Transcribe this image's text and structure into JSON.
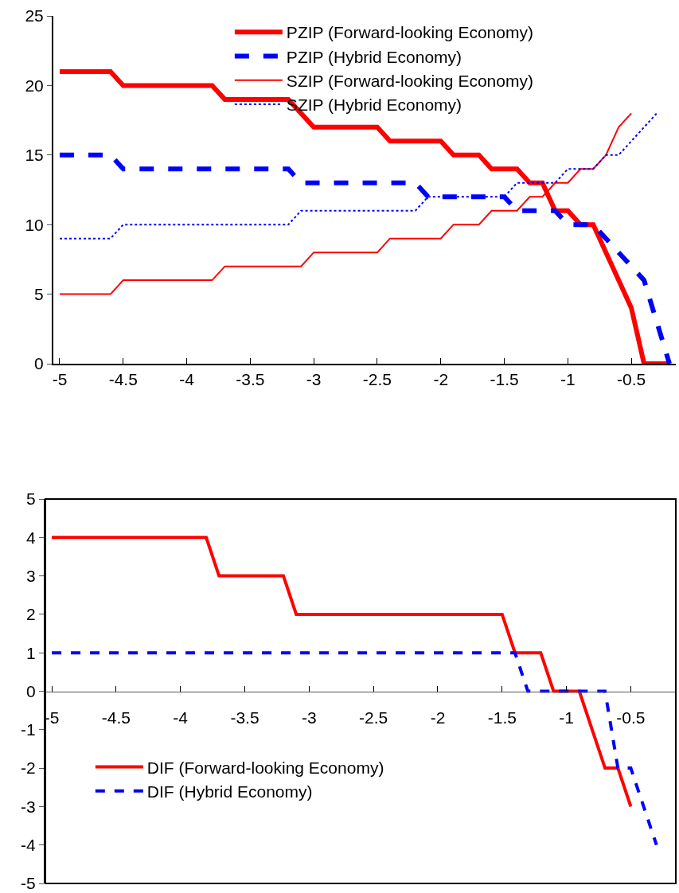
{
  "chart_data": [
    {
      "type": "line",
      "x": [
        -5,
        -4.9,
        -4.8,
        -4.7,
        -4.6,
        -4.5,
        -4.4,
        -4.3,
        -4.2,
        -4.1,
        -4,
        -3.9,
        -3.8,
        -3.7,
        -3.6,
        -3.5,
        -3.4,
        -3.3,
        -3.2,
        -3.1,
        -3,
        -2.9,
        -2.8,
        -2.7,
        -2.6,
        -2.5,
        -2.4,
        -2.3,
        -2.2,
        -2.1,
        -2,
        -1.9,
        -1.8,
        -1.7,
        -1.6,
        -1.5,
        -1.4,
        -1.3,
        -1.2,
        -1.1,
        -1,
        -0.9,
        -0.8,
        -0.7,
        -0.6,
        -0.5,
        -0.4,
        -0.3,
        -0.2
      ],
      "series": [
        {
          "name": "PZIP (Forward-looking Economy)",
          "color": "#ff0000",
          "line_style": "solid",
          "values": [
            21,
            21,
            21,
            21,
            21,
            20,
            20,
            20,
            20,
            20,
            20,
            20,
            20,
            19,
            19,
            19,
            19,
            19,
            19,
            18,
            17,
            17,
            17,
            17,
            17,
            17,
            16,
            16,
            16,
            16,
            16,
            15,
            15,
            15,
            14,
            14,
            14,
            13,
            13,
            11,
            11,
            10,
            10,
            8,
            6,
            4,
            0,
            0,
            0
          ]
        },
        {
          "name": "PZIP (Hybrid Economy)",
          "color": "#0000ff",
          "line_style": "dashed",
          "values": [
            15,
            15,
            15,
            15,
            15,
            14,
            14,
            14,
            14,
            14,
            14,
            14,
            14,
            14,
            14,
            14,
            14,
            14,
            14,
            13,
            13,
            13,
            13,
            13,
            13,
            13,
            13,
            13,
            13,
            12,
            12,
            12,
            12,
            12,
            12,
            12,
            11,
            11,
            11,
            11,
            10,
            10,
            10,
            9,
            8,
            7,
            6,
            3,
            0
          ]
        },
        {
          "name": "SZIP (Forward-looking Economy)",
          "color": "#ff0000",
          "line_style": "solid",
          "values": [
            5,
            5,
            5,
            5,
            5,
            6,
            6,
            6,
            6,
            6,
            6,
            6,
            6,
            7,
            7,
            7,
            7,
            7,
            7,
            7,
            8,
            8,
            8,
            8,
            8,
            8,
            9,
            9,
            9,
            9,
            9,
            10,
            10,
            10,
            11,
            11,
            11,
            12,
            12,
            13,
            13,
            14,
            14,
            15,
            17,
            18,
            null,
            null,
            null
          ]
        },
        {
          "name": "SZIP (Hybrid Economy)",
          "color": "#0000ff",
          "line_style": "dotted",
          "values": [
            9,
            9,
            9,
            9,
            9,
            10,
            10,
            10,
            10,
            10,
            10,
            10,
            10,
            10,
            10,
            10,
            10,
            10,
            10,
            11,
            11,
            11,
            11,
            11,
            11,
            11,
            11,
            11,
            11,
            12,
            12,
            12,
            12,
            12,
            12,
            12,
            13,
            13,
            13,
            13,
            14,
            14,
            14,
            15,
            15,
            16,
            17,
            18,
            null
          ]
        }
      ],
      "xlim": [
        -5.05,
        -0.15
      ],
      "xticks": [
        -5,
        -4.5,
        -4,
        -3.5,
        -3,
        -2.5,
        -2,
        -1.5,
        -1,
        -0.5
      ],
      "ylim": [
        0,
        25
      ],
      "yticks": [
        0,
        5,
        10,
        15,
        20,
        25
      ],
      "grid": false,
      "legend": "top",
      "marker": "none"
    },
    {
      "type": "line",
      "x": [
        -5,
        -4.9,
        -4.8,
        -4.7,
        -4.6,
        -4.5,
        -4.4,
        -4.3,
        -4.2,
        -4.1,
        -4,
        -3.9,
        -3.8,
        -3.7,
        -3.6,
        -3.5,
        -3.4,
        -3.3,
        -3.2,
        -3.1,
        -3,
        -2.9,
        -2.8,
        -2.7,
        -2.6,
        -2.5,
        -2.4,
        -2.3,
        -2.2,
        -2.1,
        -2,
        -1.9,
        -1.8,
        -1.7,
        -1.6,
        -1.5,
        -1.4,
        -1.3,
        -1.2,
        -1.1,
        -1,
        -0.9,
        -0.8,
        -0.7,
        -0.6,
        -0.5,
        -0.4,
        -0.3
      ],
      "series": [
        {
          "name": "DIF (Forward-looking Economy)",
          "color": "#ff0000",
          "line_style": "solid",
          "values": [
            4,
            4,
            4,
            4,
            4,
            4,
            4,
            4,
            4,
            4,
            4,
            4,
            4,
            3,
            3,
            3,
            3,
            3,
            3,
            2,
            2,
            2,
            2,
            2,
            2,
            2,
            2,
            2,
            2,
            2,
            2,
            2,
            2,
            2,
            2,
            2,
            1,
            1,
            1,
            0,
            0,
            0,
            -1,
            -2,
            -2,
            -3,
            null,
            null
          ]
        },
        {
          "name": "DIF (Hybrid Economy)",
          "color": "#0000ff",
          "line_style": "dashed",
          "values": [
            1,
            1,
            1,
            1,
            1,
            1,
            1,
            1,
            1,
            1,
            1,
            1,
            1,
            1,
            1,
            1,
            1,
            1,
            1,
            1,
            1,
            1,
            1,
            1,
            1,
            1,
            1,
            1,
            1,
            1,
            1,
            1,
            1,
            1,
            1,
            1,
            1,
            0,
            0,
            0,
            0,
            0,
            0,
            0,
            -2,
            -2,
            -3,
            -4
          ]
        }
      ],
      "xlim": [
        -5.05,
        -0.15
      ],
      "xticks": [
        -5,
        -4.5,
        -4,
        -3.5,
        -3,
        -2.5,
        -2,
        -1.5,
        -1,
        -0.5
      ],
      "ylim": [
        -5,
        5
      ],
      "yticks": [
        -5,
        -4,
        -3,
        -2,
        -1,
        0,
        1,
        2,
        3,
        4,
        5
      ],
      "grid": false,
      "legend": "bottom left",
      "marker": "none"
    }
  ]
}
